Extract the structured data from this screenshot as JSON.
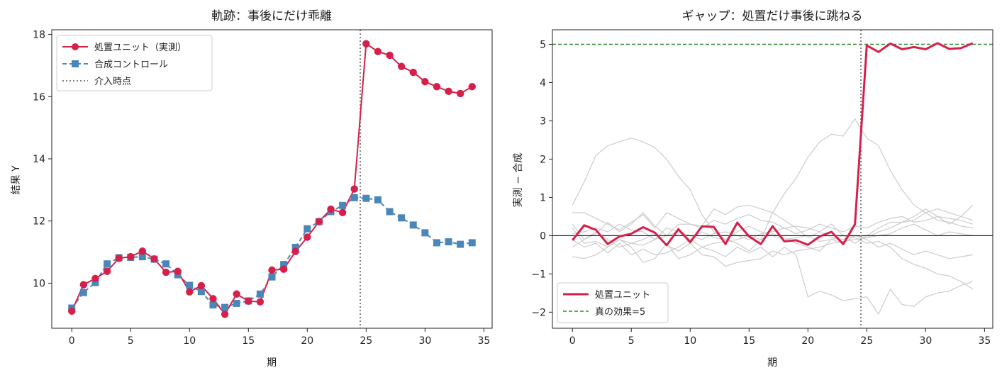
{
  "chart_data": [
    {
      "type": "line",
      "title": "軌跡：事後にだけ乖離",
      "xlabel": "期",
      "ylabel": "結果 Y",
      "xlim": [
        -1.7,
        35.7
      ],
      "ylim": [
        8.55,
        18.15
      ],
      "xticks": [
        0,
        5,
        10,
        15,
        20,
        25,
        30,
        35
      ],
      "yticks": [
        10,
        12,
        14,
        16,
        18
      ],
      "grid": false,
      "legend_position": "top-left",
      "intervention_x": 24.5,
      "intervention_label": "介入時点",
      "x": [
        0,
        1,
        2,
        3,
        4,
        5,
        6,
        7,
        8,
        9,
        10,
        11,
        12,
        13,
        14,
        15,
        16,
        17,
        18,
        19,
        20,
        21,
        22,
        23,
        24,
        25,
        26,
        27,
        28,
        29,
        30,
        31,
        32,
        33,
        34
      ],
      "series": [
        {
          "name": "処置ユニット（実測）",
          "color": "#d6204a",
          "marker": "circle",
          "style": "solid",
          "values": [
            9.1,
            9.95,
            10.15,
            10.38,
            10.8,
            10.85,
            11.03,
            10.78,
            10.35,
            10.38,
            9.72,
            9.92,
            9.5,
            9.0,
            9.65,
            9.42,
            9.4,
            10.42,
            10.45,
            11.02,
            11.48,
            11.98,
            12.38,
            12.27,
            13.03,
            17.7,
            17.45,
            17.33,
            16.97,
            16.78,
            16.48,
            16.32,
            16.17,
            16.1,
            16.32
          ]
        },
        {
          "name": "合成コントロール",
          "color": "#4a86b8",
          "marker": "square",
          "style": "dashed",
          "values": [
            9.2,
            9.7,
            10.02,
            10.62,
            10.82,
            10.83,
            10.85,
            10.77,
            10.62,
            10.27,
            9.93,
            9.73,
            9.3,
            9.22,
            9.35,
            9.43,
            9.65,
            10.2,
            10.6,
            11.15,
            11.75,
            11.98,
            12.3,
            12.5,
            12.75,
            12.73,
            12.68,
            12.3,
            12.1,
            11.87,
            11.62,
            11.3,
            11.33,
            11.25,
            11.3
          ]
        }
      ]
    },
    {
      "type": "line",
      "title": "ギャップ：処置だけ事後に跳ねる",
      "xlabel": "期",
      "ylabel": "実測 − 合成",
      "xlim": [
        -1.7,
        35.7
      ],
      "ylim": [
        -2.42,
        5.38
      ],
      "xticks": [
        0,
        5,
        10,
        15,
        20,
        25,
        30,
        35
      ],
      "yticks": [
        -2,
        -1,
        0,
        1,
        2,
        3,
        4,
        5
      ],
      "grid": false,
      "legend_position": "bottom-left",
      "intervention_x": 24.5,
      "true_effect": 5,
      "true_effect_label": "真の効果=5",
      "x": [
        0,
        1,
        2,
        3,
        4,
        5,
        6,
        7,
        8,
        9,
        10,
        11,
        12,
        13,
        14,
        15,
        16,
        17,
        18,
        19,
        20,
        21,
        22,
        23,
        24,
        25,
        26,
        27,
        28,
        29,
        30,
        31,
        32,
        33,
        34
      ],
      "treated": {
        "name": "処置ユニット",
        "color": "#d6204a",
        "values": [
          -0.12,
          0.27,
          0.15,
          -0.22,
          -0.02,
          0.05,
          0.22,
          0.08,
          -0.25,
          0.17,
          -0.17,
          0.24,
          0.23,
          -0.22,
          0.34,
          -0.02,
          -0.22,
          0.25,
          -0.15,
          -0.12,
          -0.24,
          -0.02,
          0.1,
          -0.22,
          0.3,
          4.97,
          4.8,
          5.02,
          4.87,
          4.93,
          4.87,
          5.03,
          4.88,
          4.9,
          5.03
        ]
      },
      "placebo_color": "#cccccc",
      "placebos": [
        [
          0.8,
          1.4,
          2.1,
          2.35,
          2.45,
          2.55,
          2.45,
          2.3,
          2.0,
          1.55,
          1.2,
          0.55,
          0.1,
          -0.1,
          -0.2,
          -0.4,
          -0.1,
          0.6,
          1.1,
          1.5,
          2.05,
          2.45,
          2.65,
          2.6,
          3.05,
          2.55,
          2.35,
          1.7,
          1.2,
          0.8,
          0.6,
          0.4,
          0.35,
          0.25,
          0.2
        ],
        [
          0.6,
          0.6,
          0.45,
          0.3,
          0.15,
          0.35,
          0.55,
          0.2,
          0.6,
          0.45,
          0.3,
          0.2,
          0.4,
          0.3,
          0.45,
          0.55,
          0.4,
          0.35,
          0.2,
          0.05,
          0.15,
          0.3,
          0.2,
          0.1,
          0.25,
          0.2,
          0.35,
          0.45,
          0.5,
          0.35,
          0.4,
          0.5,
          0.45,
          0.4,
          0.3
        ],
        [
          0.3,
          -0.1,
          0.05,
          0.35,
          0.1,
          0.3,
          0.6,
          0.25,
          0.0,
          0.3,
          0.3,
          0.25,
          0.7,
          0.55,
          0.75,
          0.8,
          0.7,
          0.6,
          0.4,
          0.2,
          -0.05,
          0.1,
          0.3,
          0.0,
          -0.2,
          0.0,
          0.2,
          0.35,
          0.35,
          0.4,
          0.6,
          0.7,
          0.6,
          0.5,
          0.4
        ],
        [
          -0.3,
          -0.1,
          0.1,
          -0.1,
          -0.3,
          -0.2,
          -0.1,
          0.05,
          -0.25,
          -0.4,
          -0.2,
          -0.5,
          -0.55,
          -0.8,
          -0.7,
          -0.65,
          -0.6,
          -0.4,
          -0.5,
          -0.4,
          -0.35,
          -0.3,
          -0.2,
          -0.15,
          -0.1,
          -0.05,
          0.1,
          0.2,
          0.35,
          0.5,
          0.7,
          0.5,
          0.3,
          0.5,
          0.8
        ],
        [
          0.2,
          -0.2,
          -0.15,
          -0.3,
          -0.1,
          -0.2,
          -0.25,
          -0.1,
          0.0,
          0.1,
          0.0,
          -0.1,
          0.05,
          0.1,
          0.0,
          -0.1,
          0.05,
          0.1,
          0.2,
          0.25,
          0.2,
          0.1,
          -0.05,
          -0.1,
          0.0,
          -0.05,
          0.0,
          0.05,
          0.2,
          0.3,
          0.15,
          0.0,
          0.1,
          0.05,
          0.0
        ],
        [
          -0.1,
          -0.3,
          -0.2,
          -0.45,
          -0.2,
          -0.5,
          -0.35,
          -0.5,
          -0.45,
          -0.3,
          -0.1,
          -0.3,
          -0.2,
          -0.15,
          -0.1,
          0.0,
          -0.1,
          0.05,
          -0.05,
          -0.2,
          -0.3,
          -0.4,
          -0.1,
          -0.2,
          0.0,
          -0.1,
          -0.3,
          -0.2,
          -0.35,
          -0.5,
          -0.4,
          -0.5,
          -0.6,
          -0.55,
          -0.5
        ],
        [
          -0.55,
          -0.6,
          -0.5,
          -0.3,
          -0.1,
          -0.3,
          -0.7,
          -0.6,
          -0.2,
          -0.6,
          -0.5,
          -0.3,
          -0.4,
          -0.55,
          -0.3,
          -0.45,
          -0.3,
          -0.55,
          -0.3,
          -0.5,
          -1.6,
          -1.45,
          -1.55,
          -1.7,
          -1.65,
          -1.6,
          -2.05,
          -1.4,
          -1.8,
          -1.85,
          -1.6,
          -1.5,
          -1.45,
          -1.3,
          -1.2
        ],
        [
          0.05,
          0.1,
          0.2,
          0.1,
          0.3,
          0.15,
          0.1,
          -0.1,
          0.2,
          0.1,
          -0.1,
          0.1,
          -0.05,
          -0.1,
          0.1,
          0.25,
          0.1,
          0.0,
          -0.1,
          -0.05,
          0.0,
          -0.15,
          -0.1,
          0.0,
          -0.05,
          -0.2,
          -0.15,
          -0.3,
          -0.6,
          -0.75,
          -0.85,
          -1.0,
          -1.05,
          -1.2,
          -1.4
        ]
      ]
    }
  ]
}
